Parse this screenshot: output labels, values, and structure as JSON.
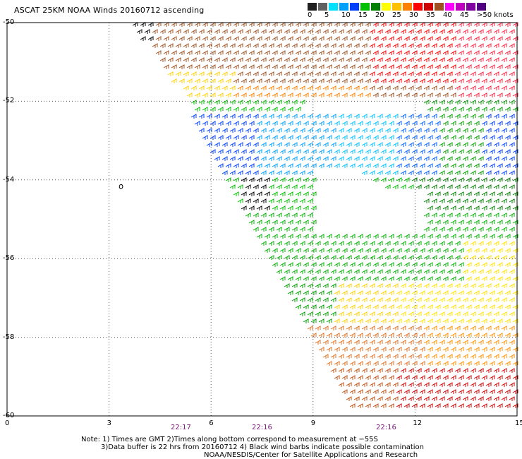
{
  "title": "ASCAT 25KM NOAA Winds 20160712 ascending",
  "color_scale": {
    "labels": [
      "0",
      "5",
      "10",
      "15",
      "20",
      "25",
      "30",
      "35",
      "40",
      "45",
      ">50 knots"
    ],
    "colors": [
      "#202020",
      "#606060",
      "#00e0ff",
      "#00a0ff",
      "#0040ff",
      "#00c000",
      "#008000",
      "#ffff00",
      "#ffc000",
      "#ff8000",
      "#ff0000",
      "#d00000",
      "#a05020",
      "#ff00ff",
      "#c000c0",
      "#8000a0",
      "#500080"
    ]
  },
  "y_ticks": [
    "-50",
    "-52",
    "-54",
    "-56",
    "-58",
    "-60"
  ],
  "x_ticks": [
    "0",
    "3",
    "6",
    "9",
    "12",
    "15"
  ],
  "lon_range": [
    0,
    15
  ],
  "lat_range": [
    -60,
    -50
  ],
  "times": [
    "22:17",
    "22:16",
    "22:16"
  ],
  "island_label": "0",
  "notes": [
    "Note: 1) Times are GMT 2)Times along bottom correspond to measurement at −55S",
    "3)Data buffer is 22 hrs from 20160712 4) Black wind barbs indicate possible contamination",
    "NOAA/NESDIS/Center for Satellite Applications and Research"
  ],
  "map_colors": {
    "grid": "#555555",
    "frame": "#000000"
  }
}
